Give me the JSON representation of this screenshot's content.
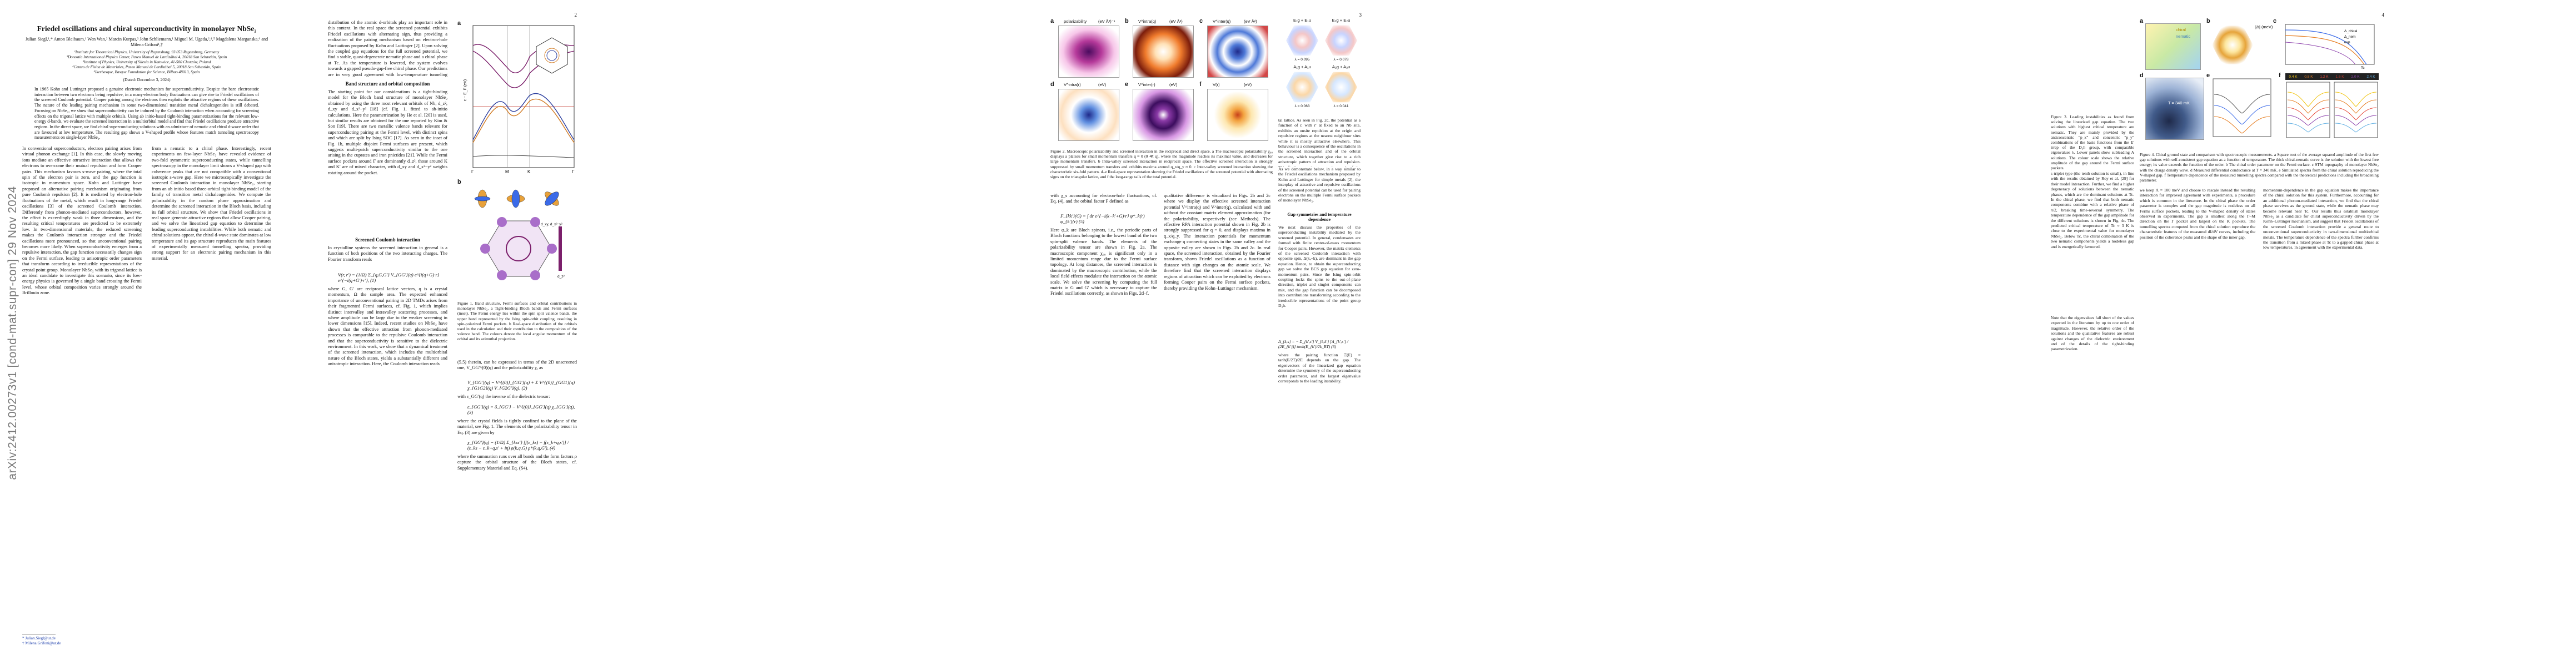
{
  "arxiv_stamp": "arXiv:2412.00273v1  [cond-mat.supr-con]  29 Nov 2024",
  "page1": {
    "title": "Friedel oscillations and chiral superconductivity in monolayer NbSe₂",
    "authors": "Julian Siegl,¹,* Anton Bleibaum,¹ Wen Wan,² Marcin Kurpas,³ John Schliemann,¹ Miguel M. Ugeda,²,⁴,⁵ Magdalena Marganska,⁶ and Milena Grifoni¹,†",
    "affil_1": "¹Institute for Theoretical Physics, University of Regensburg, 93 053 Regensburg, Germany",
    "affil_2": "²Donostia International Physics Center, Paseo Manuel de Lardizábal 4, 20018 San Sebastián, Spain",
    "affil_3": "³Institute of Physics, University of Silesia in Katowice, 41-500 Chorzów, Poland",
    "affil_4": "⁴Centro de Física de Materiales, Paseo Manuel de Lardizábal 5, 20018 San Sebastián, Spain",
    "affil_5": "⁵Ikerbasque, Basque Foundation for Science, Bilbao 48013, Spain",
    "date": "(Dated: December 3, 2024)",
    "abstract": "In 1965 Kohn and Luttinger proposed a genuine electronic mechanism for superconductivity. Despite the bare electrostatic interaction between two electrons being repulsive, in a many-electron body fluctuations can give rise to Friedel oscillations of the screened Coulomb potential. Cooper pairing among the electrons then exploits the attractive regions of these oscillations. The nature of the leading pairing mechanism in some two-dimensional transition metal dichalcogenides is still debated. Focusing on NbSe₂, we show that superconductivity can be induced by the Coulomb interaction when accounting for screening effects on the trigonal lattice with multiple orbitals. Using ab initio-based tight-binding parametrizations for the relevant low-energy d-bands, we evaluate the screened interaction in a multiorbital model and find that Friedel oscillations produce attractive regions. In the direct space, we find chiral superconducting solutions with an admixture of nematic and chiral d-wave order that are favoured at low temperature. The resulting gap shows a V-shaped profile whose features match tunneling spectroscopy measurements on single-layer NbSe₂.",
    "intro_col1": "In conventional superconductors, electron pairing arises from virtual phonon exchange [1]. In this case, the slowly moving ions mediate an effective attractive interaction that allows the electrons to overcome their mutual repulsion and form Cooper pairs. This mechanism favours s-wave pairing, where the total spin of the electron pair is zero, and the gap function is isotropic in momentum space. Kohn and Luttinger have proposed an alternative pairing mechanism originating from pure Coulomb repulsion [2]. It is mediated by electron-hole fluctuations of the metal, which result in long-range Friedel oscillations [3] of the screened Coulomb interaction. Differently from phonon-mediated superconductors, however, the effect is exceedingly weak in three dimensions, and the resulting critical temperatures are predicted to be extremely low. In two-dimensional materials, the reduced screening makes the Coulomb interaction stronger and the Friedel oscillations more pronounced, so that unconventional pairing becomes more likely. When superconductivity emerges from a repulsive interaction, the gap function necessarily changes sign on the Fermi surface, leading to anisotropic order parameters that transform according to irreducible representations of the crystal point group. Monolayer NbSe₂ with its trigonal lattice is an ideal candidate to investigate this scenario, since its low-energy physics is governed by a single band crossing the Fermi level, whose orbital composition varies strongly around the Brillouin zone.",
    "intro_col2": "from a nematic to a chiral phase. Interestingly, recent experiments on few-layer NbSe₂ have revealed evidence of two-fold symmetric superconducting states, while tunnelling spectroscopy in the monolayer limit shows a V-shaped gap with coherence peaks that are not compatible with a conventional isotropic s-wave gap. Here we microscopically investigate the screened Coulomb interaction in monolayer NbSe₂, starting from an ab initio based three-orbital tight-binding model of the family of transition metal dichalcogenides. We compute the polarizability in the random phase approximation and determine the screened interaction in the Bloch basis, including its full orbital structure. We show that Friedel oscillations in real space generate attractive regions that allow Cooper pairing, and we solve the linearized gap equation to determine the leading superconducting instabilities. While both nematic and chiral solutions appear, the chiral d-wave state dominates at low temperature and its gap structure reproduces the main features of experimentally measured tunnelling spectra, providing strong support for an electronic pairing mechanism in this material.",
    "footnote_1": "* Julian.Siegl@ur.de",
    "footnote_2": "† Milena.Grifoni@ur.de"
  },
  "page2": {
    "num": "2",
    "intro_col1": "distribution of the atomic d-orbitals play an important role in this context. In the real space the screened potential exhibits Friedel oscillations with alternating sign, thus providing a realization of the pairing mechanism based on electron-hole fluctuations proposed by Kohn and Luttinger [2]. Upon solving the coupled gap equations for the full screened potential, we find a stable, quasi-degenerate nematic phase and a chiral phase at Tc. As the temperature is lowered, the system evolves towards a gapped pseudo-gap-free chiral phase. Our predictions are in very good agreement with low-temperature tunneling spectroscopy measurements acquired on monolayer NbSe₂.",
    "section_band": "Band structure and orbital composition",
    "band_text": "The starting point for our considerations is a tight-binding model for the Bloch band structure of monolayer NbSe₂ obtained by using the three most relevant orbitals of Nb, d_z², d_xy and d_x²−y² [18] (cf. Fig. 1, fitted to ab-initio calculations. Here the parametrization by He et al. [20] is used, but similar results are obtained for the one reported by Kim & Son [19]. There are two metallic valence bands relevant for superconducting pairing at the Fermi level, with distinct spins and which are split by Ising SOC [17]. As seen in the inset of Fig. 1b, multiple disjoint Fermi surfaces are present, which suggests multi-patch superconductivity similar to the one arising in the cuprates and iron pnictides [21]. While the Fermi surface pockets around Γ are dominantly d_z², those around K and K′ are of mixed character, with d_xy and d_x²−y² weights rotating around the pocket.",
    "section_screened": "Screened Coulomb interaction",
    "screened_text": "In crystalline systems the screened interaction in general is a function of both positions of the two interacting charges. The Fourier transform reads",
    "eq1": "V(r, r′) = (1/Ω) Σ_{q,G,G′} V_{GG′}(q) e^{i(q+G)·r} e^{−i(q+G′)·r′},        (1)",
    "screened_text2": "where G, G′ are reciprocal lattice vectors, q is a crystal momentum, Ω the sample area. The expected enhanced importance of unconventional pairing in 2D TMDs arises from their fragmented Fermi surfaces, cf. Fig. 1, which implies distinct intervalley and intravalley scattering processes, and where amplitude can be large due to the weaker screening in lower dimensions [15]. Indeed, recent studies on NbSe₂ have shown that the effective attraction from phonon-mediated processes is comparable to the repulsive Coulomb interaction and that the superconductivity is sensitive to the dielectric environment. In this work, we show that a dynamical treatment of the screened interaction, which includes the multiorbital nature of the Bloch states, yields a substantially different and anisotropic interaction. Here, the Coulomb interaction reads",
    "col2_text": "(5.5) therein, can be expressed in terms of the 2D unscreened one, V_GG′^(0)(q) and the polarizability χ, as",
    "eq2": "V_{GG′}(q) = V^{(0)}_{GG′}(q) + Σ V^{(0)}_{GG1}(q) χ_{G1G2}(q) V_{G2G′}(q),        (2)",
    "col2_text2": "with ε_GG′(q) the inverse of the dielectric tensor:",
    "eq3": "ε_{GG′}(q) = δ_{GG′} − V^{(0)}_{GG′}(q) χ_{GG′}(q),        (3)",
    "col2_text3": "where the crystal fields is tightly confined to the plane of the material, see Fig. 1. The elements of the polarizability tensor in Eq. (3) are given by",
    "eq4": "χ_{GG′}(q) = (1/Ω) Σ_{kss′} [f(ε_ks) − f(ε_k+q,s′)] / (ε_ks − ε_k+q,s′ + iη) ρ(k,q,G) ρ*(k,q,G′),        (4)",
    "col2_text4": "where the summation runs over all bands and the form factors ρ capture the orbital structure of the Bloch states, cf. Supplementary Material and Eq. (S4).",
    "fig1_caption": "Figure 1. Band structure, Fermi surfaces and orbital contributions in monolayer NbSe₂. a Tight-binding Bloch bands and Fermi surfaces (inset). The Fermi energy lies within the spin split valence bands, the upper band represented by the Ising spin-orbit coupling, resulting in spin-polarized Fermi pockets. b Real-space distribution of the orbitals used in the calculation and their contribution to the composition of the valence band. The colours denote the local angular momentum of the orbital and its azimuthal projection.",
    "fig1_ylabel": "ε − E_F (eV)",
    "fig1_ticks": [
      "Γ",
      "M",
      "K",
      "Γ"
    ],
    "fig1_legend": [
      "d_z²",
      "d_xy, d_x²−y²"
    ]
  },
  "page3": {
    "num": "3",
    "fig2_titles": [
      "polarizability",
      "V^intra(q)",
      "V^inter(q)",
      "V^intra(r)",
      "V^inter(r)",
      "V(r)"
    ],
    "fig2_units": [
      "(eV Å²)⁻¹",
      "(eV Å²)",
      "(eV Å²)",
      "(eV)",
      "(eV)",
      "(eV)"
    ],
    "fig2_caption": "Figure 2. Macroscopic polarizability and screened interaction in the reciprocal and direct space. a The macroscopic polarizability χ₀₀ displays a plateau for small momentum transfers q ≈ 0 (0 ≪ q), where the magnitude reaches its maximal value, and decreases for large momentum transfers. b Intra-valley screened interaction in reciprocal space. The effective screened interaction is strongly suppressed by small momentum transfers and exhibits maxima around q_x/q_y ≈ 0. c Inter-valley screened interaction showing the characteristic six-fold pattern. d–e Real-space representation showing the Friedel oscillations of the screened potential with alternating signs on the triangular lattice, and f the long-range tails of the total potential.",
    "col1_text": "with χ_s accounting for electron-hole fluctuations, cf. Eq. (4), and the orbital factor F defined as",
    "eq5": "F_{kk′}(G) = ∫ dr e^{−i(k−k′+G)·r} φ*_k(r) φ_{k′}(r)        (5)",
    "col1_text2": "Here φ_k are Bloch spinors, i.e., the periodic parts of Bloch functions belonging to the lowest band of the two spin-split valence bands. The elements of the polarizability tensor are shown in Fig. 2a. The macroscopic component χ₀₀ is significant only in a limited momentum range due to the Fermi surface topology. At long distances, the screened interaction is dominated by the macroscopic contribution, while the local field effects modulate the interaction on the atomic scale. We solve the screening by computing the full matrix in G and G′ which is necessary to capture the Friedel oscillations correctly, as shown in Figs. 2d–f.",
    "col2_text": "qualitative difference is visualized in Figs. 2b and 2c where we display the effective screened interaction potential V^intra(q) and V^inter(q), calculated with and without the constant matrix element approximation (for the polarizability, respectively (see Methods). The effective RPA interaction potential shown in Fig. 2b is strongly suppressed for q = 0, and displays maxima in q_x/q_y. The interaction potentials for momentum exchange q connecting states in the same valley and the opposite valley are shown in Figs. 2b and 2c. In real space, the screened interaction, obtained by the Fourier transform, shows Friedel oscillations as a function of distance with sign changes on the atomic scale. We therefore find that the screened interaction displays regions of attraction which can be exploited by electrons forming Cooper pairs on the Fermi surface pockets, thereby providing the Kohn–Luttinger mechanism.",
    "col3_text": "tal lattice. As seen in Fig. 2c, the potential as a function of r, with r′ at fixed to an Nb site, exhibits an onsite repulsion at the origin and repulsive regions at the nearest neighbour sites while it is mostly attractive elsewhere. This behaviour is a consequence of the oscillations in the screened interaction and of the orbital structure, which together give rise to a rich anisotropic pattern of attraction and repulsion. This finding constitutes a major result of the present work.",
    "col3_text2": "As we demonstrate below, in a way similar to the Friedel oscillations mechanism proposed by Kohn and Luttinger for simple metals [2], the interplay of attractive and repulsive oscillations of the screened potential can be used for pairing electrons on the multiple Fermi surface pockets of monolayer NbSe₂.",
    "section_gap": "Gap symmetries and temperature dependence",
    "col3_text3": "We next discuss the properties of the superconducting instability mediated by the screened potential. In general, condensates are formed with finite center-of-mass momentum for Cooper pairs. However, the matrix elements of the screened Coulomb interaction with opposite spin, Δ(k,−k), are dominant in the gap equation. Hence, to obtain the superconducting gap we solve the BCS gap equation for zero-momentum pairs. Since the Ising spin-orbit coupling locks the spins to the out-of-plane direction, triplet and singlet components can mix, and the gap function can be decomposed into contributions transforming according to the irreducible representations of the point group D₃h.",
    "eq6": "Δ_{k,s} = − Σ_{k′,s′} V_{k,k′} [Δ_{k′,s′} / (2E_{k′})] tanh(E_{k′}/2k_BT)        (6)",
    "col3_text4": "where the pairing function Ξ(E) = tanh(E/2T)/2E depends on the gap. The eigenvectors of the linearized gap equation determine the symmetry of the superconducting order parameter, and the largest eigenvalue corresponds to the leading instability.",
    "fig3_panels": [
      "E₁g + E₁u",
      "E₂g + E₂u",
      "A₁g + A₁u",
      "A₂g + A₂u"
    ],
    "fig3_values": [
      "λ = 0.095",
      "λ = 0.078",
      "λ = 0.063",
      "λ = 0.041"
    ],
    "fig3_max": "max",
    "fig3_min": "min"
  },
  "page4": {
    "num": "4",
    "fig3_caption": "Figure 3. Leading instabilities as found from solving the linearized gap equation. The two solutions with highest critical temperature are nematic. They are mainly provided by the anticoncentric “p_x” and concentric “p_y” combinations of the basis functions from the E′ irrep of the D₃h group, with comparable eigenvalues λ. Lower panels show subleading A solutions. The colour scale shows the relative amplitude of the gap around the Fermi surface pockets.",
    "col1_text": "s-triplet type (the tenth solution is small), in line with the results obtained by Roy et al. [29] for their model interaction. Further, we find a higher degeneracy of solutions between the nematic phases, which are the dominant solutions at Tc. In the chiral phase, we find that both nematic components combine with a relative phase of π/2, breaking time-reversal symmetry. The temperature dependence of the gap amplitude for the different solutions is shown in Fig. 4c. The predicted critical temperature of Tc ≈ 3 K is close to the experimental value for monolayer NbSe₂. Below Tc, the chiral combination of the two nematic components yields a nodeless gap and is energetically favoured.",
    "col1_text2": "Note that the eigenvalues fall short of the values expected in the literature by up to one order of magnitude. However, the relative order of the solutions and the qualitative features are robust against changes of the dielectric environment and of the details of the tight-binding parametrization.",
    "fig4_titles": [
      "chiral",
      "nematic",
      "(eV)",
      "|Δ| (meV)",
      "dI/dV (arb. u.)"
    ],
    "fig4_legend": [
      "Δ_chiral",
      "Δ_nem",
      "exp"
    ],
    "fig4_temps": [
      "0.4 K",
      "0.8 K",
      "1.2 K",
      "1.6 K",
      "2.0 K",
      "2.4 K"
    ],
    "fig4_tc": "Tc",
    "fig4_scale": "T = 340 mK",
    "fig4_caption": "Figure 4. Chiral ground state and comparison with spectroscopic measurements. a Square root of the average squared amplitude of the first few gap solutions with self-consistent gap equation as a function of temperature. The thick chiral-nematic curve is the solution with the lowest free energy; its value exceeds the function of the order. b The chiral order parameter on the Fermi surface. c STM topography of monolayer NbSe₂ with the charge density wave. d Measured differential conductance at T = 340 mK. e Simulated spectra from the chiral solution reproducing the V-shaped gap. f Temperature dependence of the measured tunnelling spectra compared with the theoretical predictions including the broadening parameter.",
    "col2_text": "we keep Λ = 100 meV and choose to rescale instead the resulting interaction for improved agreement with experiments, a procedure which is common in the literature. In the chiral phase the order parameter is complex and the gap magnitude is nodeless on all Fermi surface pockets, leading to the V-shaped density of states observed in experiments. The gap is smallest along the Γ–M direction on the Γ pocket and largest on the K pockets. The tunnelling spectra computed from the chiral solution reproduce the characteristic features of the measured dI/dV curves, including the position of the coherence peaks and the shape of the inner gap.",
    "col3_text": "momentum-dependence in the gap equation makes the importance of the chiral solution for this system. Furthermore, accounting for an additional phonon-mediated interaction, we find that the chiral phase survives as the ground state, while the nematic phase may become relevant near Tc. Our results thus establish monolayer NbSe₂ as a candidate for chiral superconductivity driven by the Kohn–Luttinger mechanism, and suggest that Friedel oscillations of the screened Coulomb interaction provide a general route to unconventional superconductivity in two-dimensional multiorbital metals. The temperature dependence of the spectra further confirms the transition from a mixed phase at Tc to a gapped chiral phase at low temperatures, in agreement with the experimental data."
  }
}
